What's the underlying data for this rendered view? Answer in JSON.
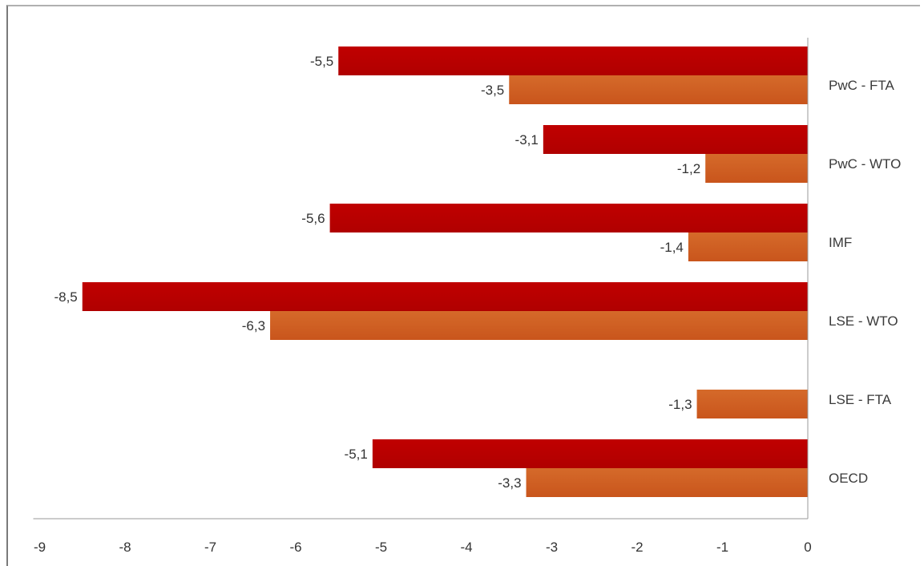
{
  "chart_data": {
    "type": "bar",
    "orientation": "horizontal",
    "categories": [
      "PwC - FTA",
      "PwC - WTO",
      "IMF",
      "LSE - WTO",
      "LSE - FTA",
      "OECD"
    ],
    "series": [
      {
        "values": [
          -5.5,
          -3.1,
          -5.6,
          -8.5,
          null,
          -5.1
        ]
      },
      {
        "values": [
          -3.5,
          -1.2,
          -1.4,
          -6.3,
          -1.3,
          -3.3
        ]
      }
    ],
    "data_labels": [
      [
        "-5,5",
        "-3,1",
        "-5,6",
        "-8,5",
        "",
        "-5,1"
      ],
      [
        "-3,5",
        "-1,2",
        "-1,4",
        "-6,3",
        "-1,3",
        "-3,3"
      ]
    ],
    "xlim": [
      -9,
      0
    ],
    "ticks": [
      -9,
      -8,
      -7,
      -6,
      -5,
      -4,
      -3,
      -2,
      -1,
      0
    ],
    "tick_labels": [
      "-9",
      "-8",
      "-7",
      "-6",
      "-5",
      "-4",
      "-3",
      "-2",
      "-1",
      "0"
    ],
    "category_axis_side": "right",
    "legend": "none",
    "grid": false,
    "colors": {
      "series1": "#c00000",
      "series2": "#c9551c",
      "axis": "#9a9a9a"
    },
    "title": "",
    "xlabel": "",
    "ylabel": ""
  }
}
